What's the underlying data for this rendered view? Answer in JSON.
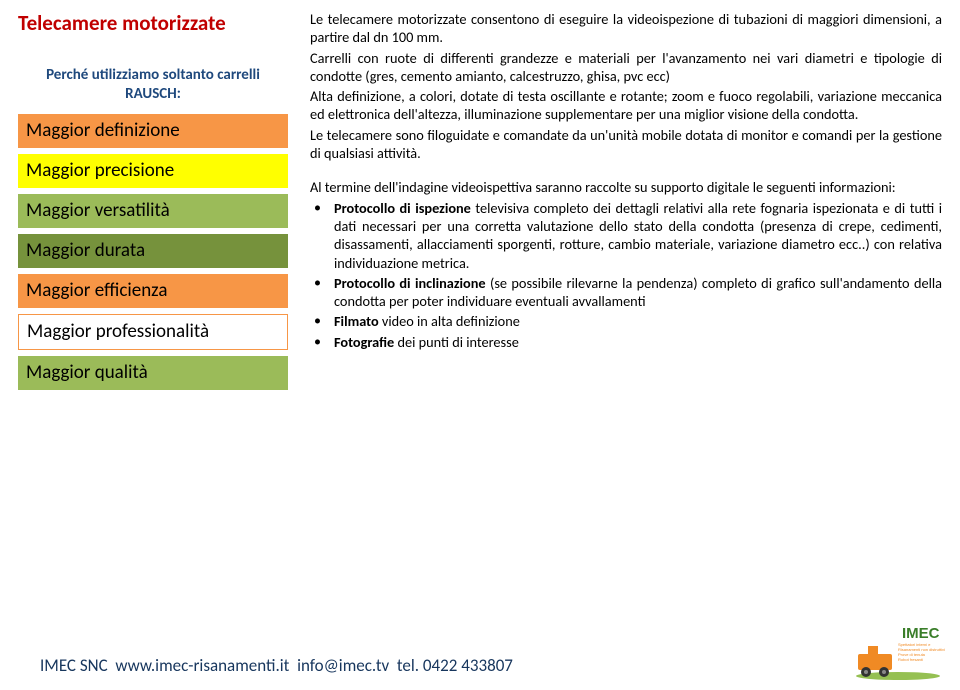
{
  "colors": {
    "title": "#c00000",
    "bar_orange": "#f79646",
    "bar_yellow": "#ffff00",
    "bar_green_dark": "#9bbb59",
    "bar_green_mid": "#76923c",
    "bar_white_border": "#ff8a00",
    "sub_blue": "#1f497d",
    "footer_blue": "#17365d",
    "body_text": "#000000",
    "logo_green": "#8ab93f",
    "logo_orange": "#f08a24",
    "logo_text": "#3a7e2a"
  },
  "left": {
    "title": "Telecamere motorizzate",
    "subtitle_line1": "Perché utilizziamo soltanto carrelli",
    "subtitle_line2": "RAUSCH:",
    "bars": [
      {
        "label": "Maggior definizione",
        "bg": "#f79646"
      },
      {
        "label": "Maggior precisione",
        "bg": "#ffff00"
      },
      {
        "label": "Maggior versatilità",
        "bg": "#9bbb59"
      },
      {
        "label": "Maggior durata",
        "bg": "#76923c"
      },
      {
        "label": "Maggior efficienza",
        "bg": "#f79646"
      },
      {
        "label": "Maggior professionalità",
        "bg": "#ffffff",
        "border": "#f79646"
      },
      {
        "label": "Maggior qualità",
        "bg": "#9bbb59"
      }
    ]
  },
  "right": {
    "p1": "Le telecamere motorizzate consentono di eseguire la videoispezione di tubazioni di maggiori dimensioni, a partire dal dn 100 mm.",
    "p2": "Carrelli con ruote di differenti grandezze e materiali per l'avanzamento nei vari diametri e tipologie di condotte (gres, cemento amianto, calcestruzzo, ghisa, pvc ecc)",
    "p3": "Alta definizione, a colori, dotate di testa oscillante e rotante; zoom e fuoco regolabili, variazione meccanica ed elettronica dell'altezza, illuminazione supplementare per una miglior visione della condotta.",
    "p4": "Le telecamere sono filoguidate e comandate da un'unità mobile dotata di monitor e comandi per la gestione di qualsiasi attività.",
    "p5": "Al termine dell'indagine videoispettiva saranno raccolte su supporto digitale le seguenti informazioni:",
    "bullets": {
      "b1_bold": "Protocollo di ispezione",
      "b1_rest": " televisiva completo dei dettagli relativi alla rete fognaria ispezionata e di tutti i dati necessari per una corretta valutazione dello stato della condotta (presenza di crepe, cedimenti, disassamenti, allacciamenti sporgenti, rotture, cambio materiale, variazione diametro ecc..) con relativa individuazione metrica.",
      "b2_bold": "Protocollo di inclinazione",
      "b2_rest": " (se possibile rilevarne la pendenza) completo di grafico sull'andamento della condotta per poter individuare eventuali avvallamenti",
      "b3_bold": "Filmato",
      "b3_rest": " video in alta definizione",
      "b4_bold": "Fotografie",
      "b4_rest": " dei punti di interesse"
    }
  },
  "footer": {
    "company": "IMEC SNC",
    "url": "www.imec-risanamenti.it",
    "email": "info@imec.tv",
    "tel_label": "tel.",
    "tel_number": "0422 433807"
  },
  "logo": {
    "brand": "IMEC",
    "tagline1": "Spettatori interni e",
    "tagline2": "Risanamenti non distruttivi",
    "tagline3": "Prove di tenuta",
    "tagline4": "Robot fresanti"
  }
}
